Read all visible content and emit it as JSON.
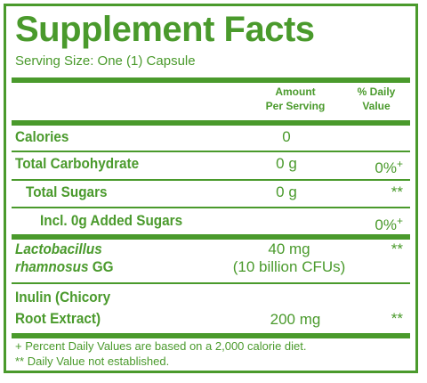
{
  "title": "Supplement Facts",
  "serving_size": "Serving Size: One (1) Capsule",
  "headers": {
    "amount_line1": "Amount",
    "amount_line2": "Per Serving",
    "dv_line1": "% Daily",
    "dv_line2": "Value"
  },
  "rows": {
    "calories": {
      "label": "Calories",
      "amount": "0"
    },
    "carb": {
      "label": "Total Carbohydrate",
      "amount": "0 g",
      "dv": "0%",
      "dv_mark": "+"
    },
    "sugars": {
      "label": "Total Sugars",
      "amount": "0 g",
      "dv": "**"
    },
    "added": {
      "label": "Incl. 0g Added Sugars",
      "dv": "0%",
      "dv_mark": "+"
    },
    "lacto": {
      "label_line1": "Lactobacillus",
      "label_line2a": "rhamnosus",
      "label_line2b": " GG",
      "amount_line1": "40 mg",
      "amount_line2": "(10 billion CFUs)",
      "dv": "**"
    },
    "inulin": {
      "label_line1": "Inulin (Chicory",
      "label_line2": "Root Extract)",
      "amount": "200 mg",
      "dv": "**"
    }
  },
  "footnotes": {
    "note1": "+ Percent Daily Values are based on a 2,000 calorie diet.",
    "note2": "** Daily Value not established."
  },
  "colors": {
    "brand_green": "#4a9a2c",
    "background": "#ffffff"
  }
}
